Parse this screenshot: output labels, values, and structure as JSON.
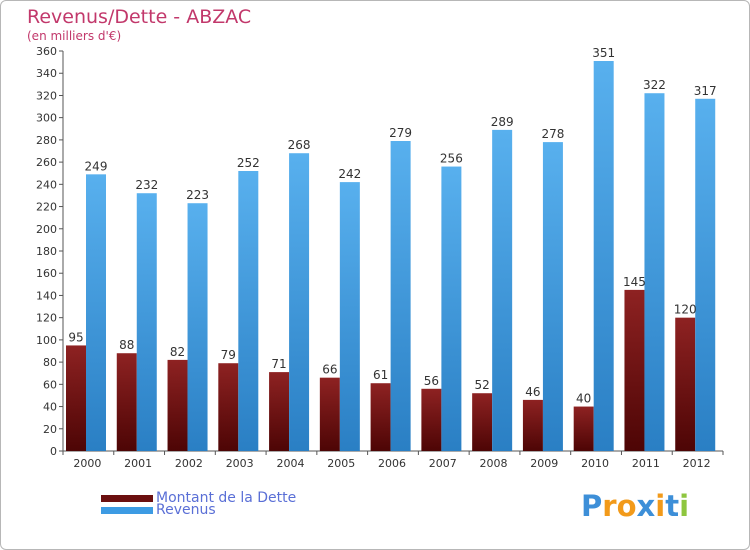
{
  "header": {
    "title": "Revenus/Dette - ABZAC",
    "subtitle": "(en milliers d'€)"
  },
  "chart_data": {
    "type": "bar",
    "categories": [
      "2000",
      "2001",
      "2002",
      "2003",
      "2004",
      "2005",
      "2006",
      "2007",
      "2008",
      "2009",
      "2010",
      "2011",
      "2012"
    ],
    "series": [
      {
        "name": "Montant de la Dette",
        "color": "#7a1616",
        "values": [
          95,
          88,
          82,
          79,
          71,
          66,
          61,
          56,
          52,
          46,
          40,
          145,
          120
        ]
      },
      {
        "name": "Revenus",
        "color": "#3d9be3",
        "values": [
          249,
          232,
          223,
          252,
          268,
          242,
          279,
          256,
          289,
          278,
          351,
          322,
          317
        ]
      }
    ],
    "ylim": [
      0,
      360
    ],
    "ytick_step": 20,
    "grid": false,
    "legend_position": "bottom-left"
  },
  "legend": {
    "items": [
      {
        "label": "Montant de la Dette",
        "color": "#6b0f0f"
      },
      {
        "label": "Revenus",
        "color": "#3d9be3"
      }
    ]
  },
  "brand": {
    "letters": [
      "P",
      "r",
      "o",
      "x",
      "i",
      "t",
      "i"
    ],
    "colors": [
      "#3d8fd8",
      "#f29a1a",
      "#f29a1a",
      "#3d8fd8",
      "#f29a1a",
      "#3d8fd8",
      "#8ec63f"
    ]
  }
}
